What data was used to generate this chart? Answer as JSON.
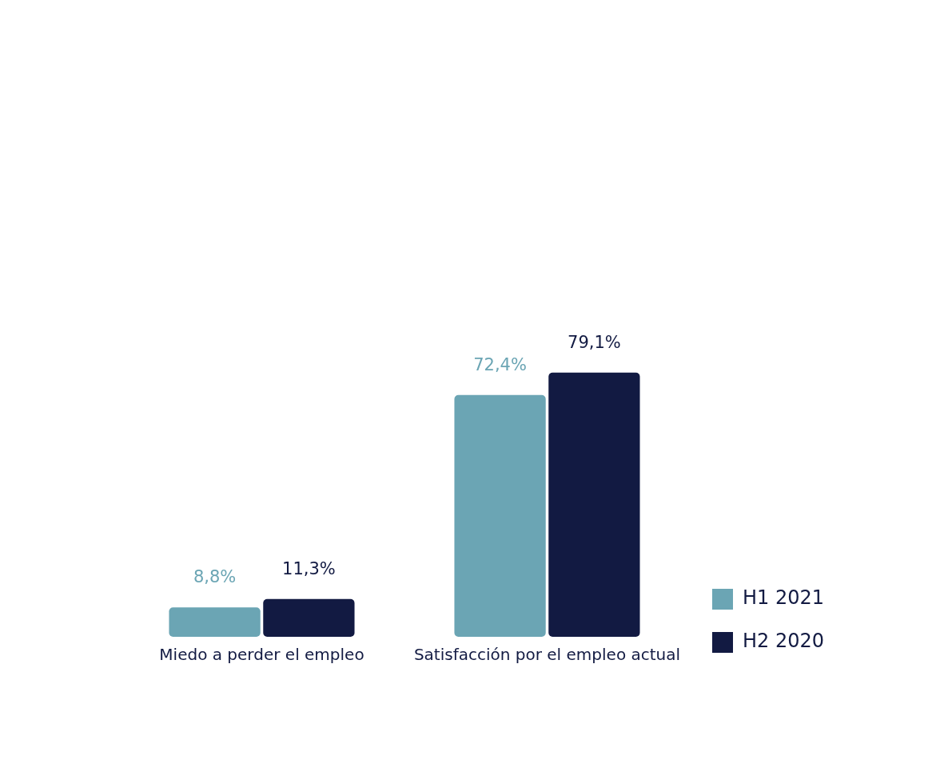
{
  "chart_data": {
    "type": "bar",
    "categories": [
      "Miedo a perder el empleo",
      "Satisfacción por el empleo actual"
    ],
    "series": [
      {
        "name": "H1 2021",
        "color": "#6ba5b4",
        "values": [
          8.8,
          72.4
        ],
        "value_labels": [
          "8,8%",
          "72,4%"
        ]
      },
      {
        "name": "H2 2020",
        "color": "#121a42",
        "values": [
          11.3,
          79.1
        ],
        "value_labels": [
          "11,3%",
          "79,1%"
        ]
      }
    ],
    "grid": false,
    "legend": "bottom right"
  }
}
